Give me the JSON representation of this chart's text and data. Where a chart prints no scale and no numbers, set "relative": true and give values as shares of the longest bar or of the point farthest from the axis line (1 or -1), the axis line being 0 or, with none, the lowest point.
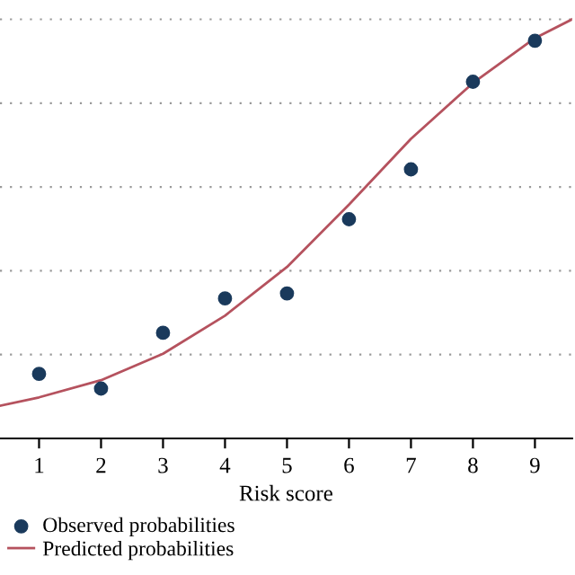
{
  "chart_data": {
    "type": "scatter",
    "xlabel": "Risk score",
    "relative": true,
    "xlim": [
      0.37,
      9.6
    ],
    "xticks": [
      1,
      2,
      3,
      4,
      5,
      6,
      7,
      8,
      9
    ],
    "series": [
      {
        "name": "Observed probabilities",
        "color": "#1a3a5c",
        "marker": "circle",
        "x": [
          1,
          2,
          3,
          4,
          5,
          6,
          7,
          8,
          9
        ],
        "values": [
          0.154,
          0.119,
          0.252,
          0.334,
          0.346,
          0.523,
          0.642,
          0.851,
          0.949
        ]
      },
      {
        "name": "Predicted probabilities",
        "type": "line",
        "color": "#b5525e",
        "x": [
          0.37,
          1,
          2,
          3,
          4,
          5,
          6,
          7,
          8,
          9,
          9.6
        ],
        "values": [
          0.078,
          0.098,
          0.139,
          0.202,
          0.293,
          0.409,
          0.558,
          0.715,
          0.848,
          0.955,
          1.0
        ]
      }
    ],
    "grid": "y",
    "legend": "bottom left"
  }
}
